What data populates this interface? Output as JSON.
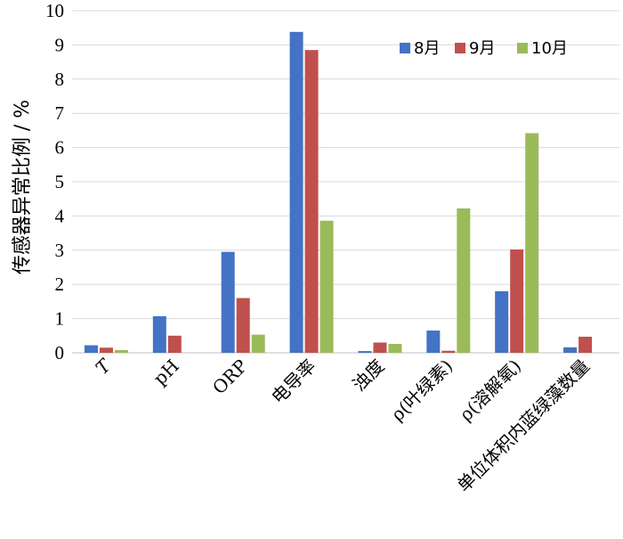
{
  "chart_data": {
    "type": "bar",
    "title": "",
    "xlabel": "",
    "ylabel": "传感器异常比例 / %",
    "ylim": [
      0,
      10
    ],
    "yticks": [
      0,
      1,
      2,
      3,
      4,
      5,
      6,
      7,
      8,
      9,
      10
    ],
    "grid": true,
    "legend_position": "top-right",
    "categories": [
      "T",
      "pH",
      "ORP",
      "电导率",
      "浊度",
      "ρ(叶绿素)",
      "ρ(溶解氧)",
      "单位体积内蓝绿藻数量"
    ],
    "series": [
      {
        "name": "8月",
        "color": "#4472c4",
        "values": [
          0.22,
          1.07,
          2.95,
          9.38,
          0.05,
          0.65,
          1.8,
          0.16
        ]
      },
      {
        "name": "9月",
        "color": "#c0504d",
        "values": [
          0.15,
          0.5,
          1.6,
          8.85,
          0.3,
          0.06,
          3.02,
          0.47
        ]
      },
      {
        "name": "10月",
        "color": "#9bbb59",
        "values": [
          0.08,
          0,
          0.53,
          3.86,
          0.26,
          4.22,
          6.42,
          0
        ]
      }
    ]
  }
}
